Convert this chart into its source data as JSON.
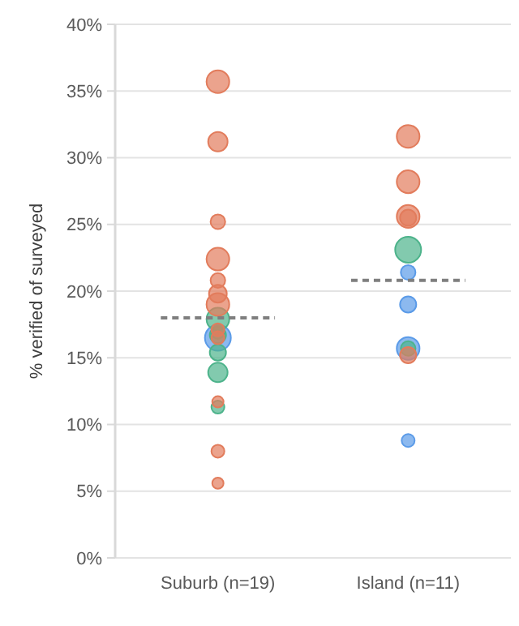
{
  "chart_data": {
    "type": "bubble",
    "ylabel": "% verified of surveyed",
    "categories": [
      "Suburb (n=19)",
      "Island (n=11)"
    ],
    "ylim": [
      0,
      40
    ],
    "yticks": [
      {
        "value": 0,
        "label": "0%"
      },
      {
        "value": 5,
        "label": "5%"
      },
      {
        "value": 10,
        "label": "10%"
      },
      {
        "value": 15,
        "label": "15%"
      },
      {
        "value": 20,
        "label": "20%"
      },
      {
        "value": 25,
        "label": "25%"
      },
      {
        "value": 30,
        "label": "30%"
      },
      {
        "value": 35,
        "label": "35%"
      },
      {
        "value": 40,
        "label": "40%"
      }
    ],
    "grid": "y",
    "series": [
      {
        "color": "#e27c5c",
        "x": [
          "Suburb (n=19)",
          "Suburb (n=19)",
          "Suburb (n=19)",
          "Suburb (n=19)",
          "Suburb (n=19)",
          "Suburb (n=19)",
          "Suburb (n=19)",
          "Suburb (n=19)",
          "Suburb (n=19)",
          "Suburb (n=19)",
          "Suburb (n=19)",
          "Suburb (n=19)",
          "Island (n=11)",
          "Island (n=11)",
          "Island (n=11)",
          "Island (n=11)",
          "Island (n=11)"
        ],
        "values": [
          35.7,
          31.2,
          25.2,
          22.4,
          20.8,
          19.8,
          19.0,
          17.1,
          16.5,
          11.7,
          8.0,
          5.6,
          31.6,
          28.2,
          25.5,
          25.6,
          15.2
        ],
        "sizes": [
          0.77,
          0.56,
          0.32,
          0.77,
          0.32,
          0.47,
          0.77,
          0.25,
          0.25,
          0.19,
          0.25,
          0.19,
          0.77,
          0.77,
          0.39,
          0.77,
          0.39
        ]
      },
      {
        "color": "#4db38b",
        "x": [
          "Suburb (n=19)",
          "Suburb (n=19)",
          "Suburb (n=19)",
          "Suburb (n=19)",
          "Suburb (n=19)",
          "Suburb (n=19)",
          "Island (n=11)",
          "Island (n=11)"
        ],
        "values": [
          17.9,
          16.9,
          16.7,
          15.4,
          13.9,
          11.3,
          23.1,
          15.7
        ],
        "sizes": [
          0.77,
          0.25,
          0.39,
          0.39,
          0.56,
          0.25,
          1.0,
          0.32
        ]
      },
      {
        "color": "#5b9be8",
        "x": [
          "Suburb (n=19)",
          "Island (n=11)",
          "Island (n=11)",
          "Island (n=11)",
          "Island (n=11)"
        ],
        "values": [
          16.5,
          21.4,
          19.0,
          15.7,
          8.8
        ],
        "sizes": [
          1.0,
          0.32,
          0.39,
          0.77,
          0.25
        ]
      }
    ],
    "ref_lines": [
      {
        "axis": "y",
        "value": 18.0,
        "color": "#7f7f7f",
        "line_style": "dashed"
      },
      {
        "axis": "y",
        "value": 20.8,
        "color": "#7f7f7f",
        "line_style": "dashed"
      }
    ]
  }
}
